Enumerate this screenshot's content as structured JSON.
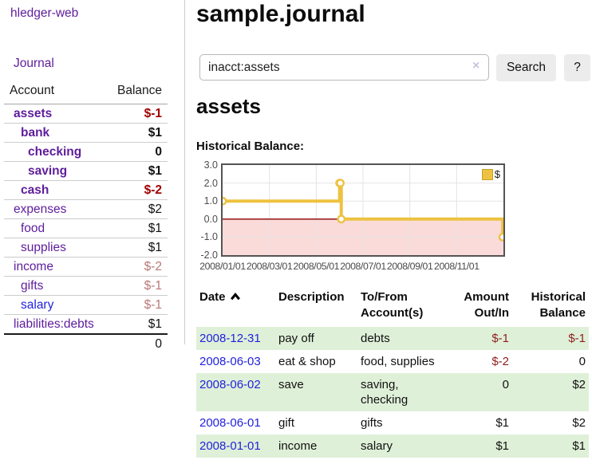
{
  "colors": {
    "link-purple": "#5e1d9c",
    "link-blue": "#2222dd",
    "neg-strong": "#a00000",
    "neg-muted": "#b87878",
    "neg-table": "#8f1f1f",
    "row-green": "#dff0d8",
    "chart-line": "#edc240",
    "chart-border": "#545454",
    "grid-line": "#e4e4e4",
    "button-bg": "#ececec",
    "border-gray": "#cccccc"
  },
  "app": {
    "brand": "hledger-web"
  },
  "sidebar": {
    "journal_label": "Journal",
    "table": {
      "headers": [
        "Account",
        "Balance"
      ],
      "rows": [
        {
          "name": "assets",
          "balance": "$-1"
        },
        {
          "name": "bank",
          "balance": "$1"
        },
        {
          "name": "checking",
          "balance": "0"
        },
        {
          "name": "saving",
          "balance": "$1"
        },
        {
          "name": "cash",
          "balance": "$-2"
        },
        {
          "name": "expenses",
          "balance": "$2"
        },
        {
          "name": "food",
          "balance": "$1"
        },
        {
          "name": "supplies",
          "balance": "$1"
        },
        {
          "name": "income",
          "balance": "$-2"
        },
        {
          "name": "gifts",
          "balance": "$-1"
        },
        {
          "name": "salary",
          "balance": "$-1"
        },
        {
          "name": "liabilities:debts",
          "balance": "$1"
        }
      ],
      "total": "0"
    }
  },
  "main": {
    "title": "sample.journal",
    "search": {
      "value": "inacct:assets",
      "clear_icon": "×",
      "button_label": "Search",
      "help_label": "?"
    },
    "account_heading": "assets",
    "chart_label": "Historical Balance:"
  },
  "chart_data": {
    "type": "line",
    "title": "Historical Balance:",
    "series": [
      {
        "name": "$",
        "color": "#edc240",
        "steps": true,
        "points": [
          {
            "date": "2008-01-01",
            "m": 0,
            "value": 1
          },
          {
            "date": "2008-06-01",
            "m": 5.0,
            "value": 2
          },
          {
            "date": "2008-06-02",
            "m": 5.03,
            "value": 2
          },
          {
            "date": "2008-06-03",
            "m": 5.07,
            "value": 0
          },
          {
            "date": "2008-12-31",
            "m": 11.97,
            "value": -1
          }
        ]
      }
    ],
    "x_ticks": [
      {
        "m": 0,
        "label": "2008/01/01"
      },
      {
        "m": 2,
        "label": "2008/03/01"
      },
      {
        "m": 4,
        "label": "2008/05/01"
      },
      {
        "m": 6,
        "label": "2008/07/01"
      },
      {
        "m": 8,
        "label": "2008/09/01"
      },
      {
        "m": 10,
        "label": "2008/11/01"
      }
    ],
    "x_range_months": [
      0,
      12
    ],
    "y_ticks": [
      3.0,
      2.0,
      1.0,
      0.0,
      -1.0,
      -2.0
    ],
    "ylim": [
      -2,
      3
    ],
    "zero_line_color": "#8b0000",
    "negative_region_color": "#fbdada",
    "grid": true,
    "legend": {
      "position": "top-right",
      "label": "$"
    }
  },
  "register": {
    "headers": [
      "Date",
      "Description",
      "To/From Account(s)",
      "Amount Out/In",
      "Historical Balance"
    ],
    "rows": [
      {
        "date": "2008-12-31",
        "description": "pay off",
        "accounts": "debts",
        "amount": "$-1",
        "balance": "$-1"
      },
      {
        "date": "2008-06-03",
        "description": "eat & shop",
        "accounts": "food, supplies",
        "amount": "$-2",
        "balance": "0"
      },
      {
        "date": "2008-06-02",
        "description": "save",
        "accounts": "saving, checking",
        "amount": "0",
        "balance": "$2"
      },
      {
        "date": "2008-06-01",
        "description": "gift",
        "accounts": "gifts",
        "amount": "$1",
        "balance": "$2"
      },
      {
        "date": "2008-01-01",
        "description": "income",
        "accounts": "salary",
        "amount": "$1",
        "balance": "$1"
      }
    ]
  }
}
